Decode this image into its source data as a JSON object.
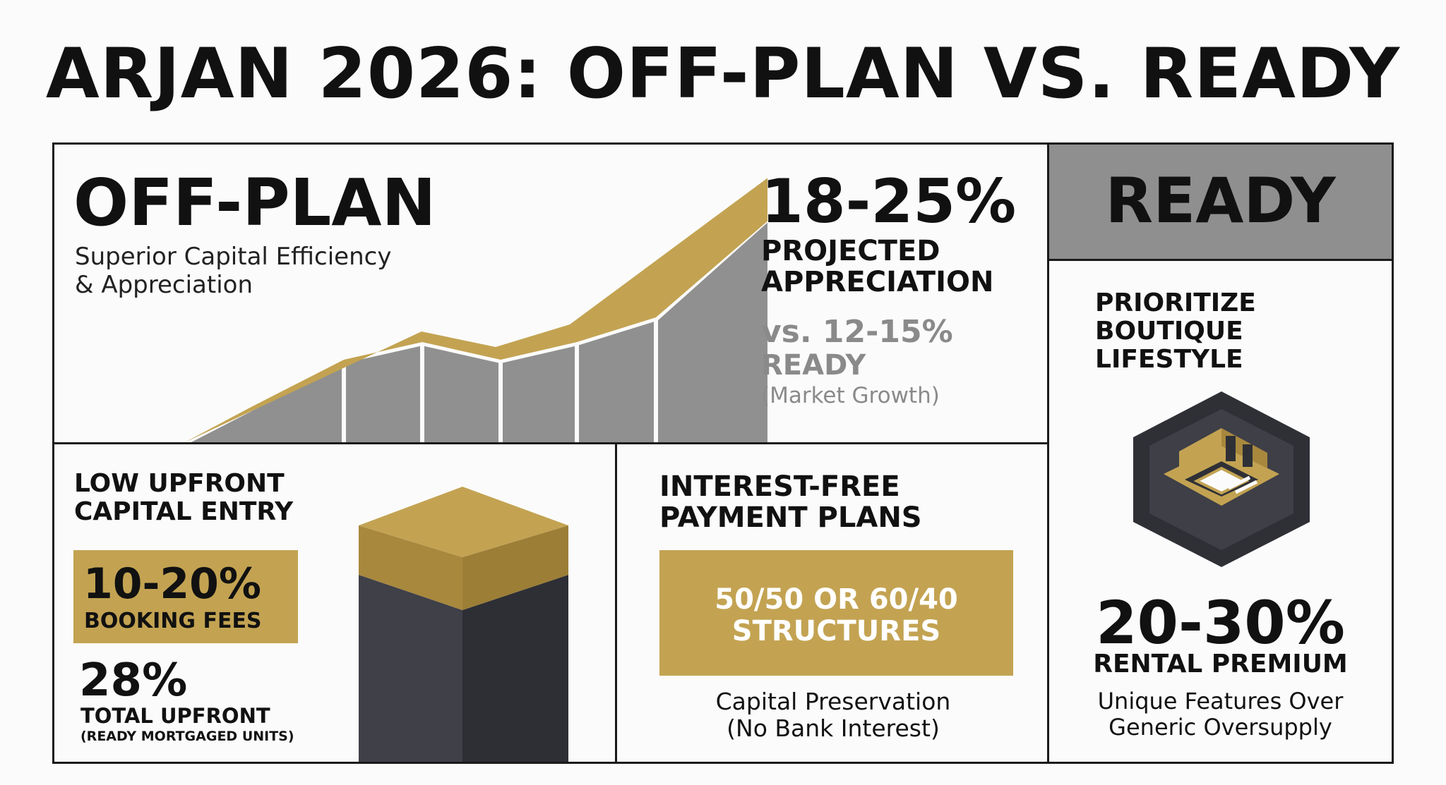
{
  "title": "ARJAN 2026: OFF-PLAN VS. READY",
  "colors": {
    "gold": "#c3a352",
    "gray": "#8f8f8f",
    "dark": "#3a3b42",
    "text": "#111111"
  },
  "off_plan": {
    "heading": "OFF-PLAN",
    "subtitle_1": "Superior Capital Efficiency",
    "subtitle_2": "& Appreciation",
    "stat": "18-25%",
    "stat_label_1": "PROJECTED",
    "stat_label_2": "APPRECIATION",
    "compare_1": "vs. 12-15%",
    "compare_2": "READY",
    "compare_note": "(Market Growth)",
    "growth_graphic": "rising-growth-chart-graphic"
  },
  "upfront": {
    "heading_1": "LOW UPFRONT",
    "heading_2": "CAPITAL ENTRY",
    "badge_value": "10-20%",
    "badge_label": "BOOKING FEES",
    "stat": "28%",
    "stat_label": "TOTAL UPFRONT",
    "stat_note": "(READY MORTGAGED UNITS)",
    "graphic": "block-pillar-graphic"
  },
  "payment": {
    "heading_1": "INTEREST-FREE",
    "heading_2": "PAYMENT PLANS",
    "box_line_1": "50/50 OR 60/40",
    "box_line_2": "STRUCTURES",
    "note_1": "Capital Preservation",
    "note_2": "(No Bank Interest)"
  },
  "ready": {
    "heading": "READY",
    "sub_1": "PRIORITIZE",
    "sub_2": "BOUTIQUE",
    "sub_3": "LIFESTYLE",
    "icon": "boutique-room-hexagon-icon",
    "stat": "20-30%",
    "stat_label": "RENTAL PREMIUM",
    "note_1": "Unique Features Over",
    "note_2": "Generic Oversupply"
  }
}
